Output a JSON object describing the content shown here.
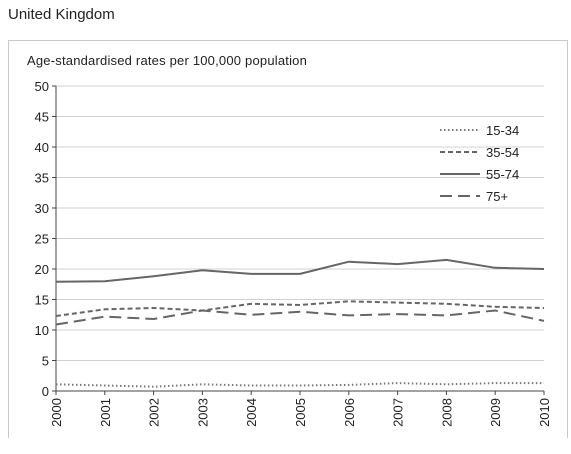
{
  "page": {
    "heading": "United Kingdom"
  },
  "chart_data": {
    "type": "line",
    "title": "",
    "ylabel": "Age-standardised rates per 100,000 population",
    "xlabel": "",
    "ylim": [
      0,
      50
    ],
    "yticks": [
      "0",
      "5",
      "10",
      "15",
      "20",
      "25",
      "30",
      "35",
      "40",
      "45",
      "50"
    ],
    "categories": [
      "2000",
      "2001",
      "2002",
      "2003",
      "2004",
      "2005",
      "2006",
      "2007",
      "2008",
      "2009",
      "2010"
    ],
    "grid": true,
    "legend_position": "top-right",
    "series": [
      {
        "name": "15-34",
        "style": "dotted",
        "color": "#777777",
        "values": [
          1.1,
          0.9,
          0.7,
          1.1,
          0.9,
          0.9,
          1.0,
          1.3,
          1.1,
          1.3,
          1.3
        ]
      },
      {
        "name": "35-54",
        "style": "dashed",
        "color": "#666666",
        "values": [
          12.3,
          13.4,
          13.6,
          13.2,
          14.3,
          14.1,
          14.7,
          14.5,
          14.3,
          13.8,
          13.6
        ]
      },
      {
        "name": "55-74",
        "style": "solid",
        "color": "#666666",
        "values": [
          17.9,
          18.0,
          18.8,
          19.8,
          19.2,
          19.2,
          21.2,
          20.8,
          21.5,
          20.2,
          20.0
        ]
      },
      {
        "name": "75+",
        "style": "longdash",
        "color": "#666666",
        "values": [
          10.9,
          12.2,
          11.8,
          13.2,
          12.5,
          13.0,
          12.4,
          12.6,
          12.4,
          13.2,
          11.5
        ]
      }
    ]
  }
}
